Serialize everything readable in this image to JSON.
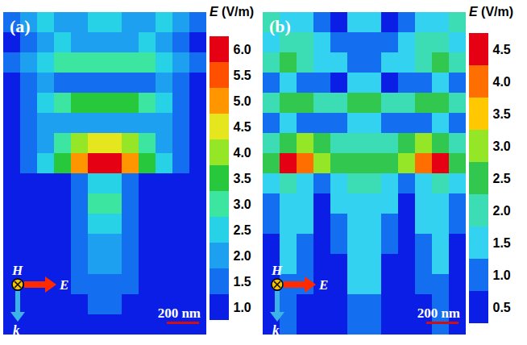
{
  "chart_data": [
    {
      "type": "heatmap",
      "title": "(a)",
      "annotations": [
        "H",
        "E",
        "k",
        "200 nm"
      ],
      "colorbar": {
        "label": "E (V/m)",
        "range": [
          1,
          6
        ],
        "ticks": [
          {
            "value": 1,
            "label": "1.0"
          },
          {
            "value": 1.5,
            "label": "1.5"
          },
          {
            "value": 2,
            "label": "2.0"
          },
          {
            "value": 2.5,
            "label": "2.5"
          },
          {
            "value": 3,
            "label": "3.0"
          },
          {
            "value": 3.5,
            "label": "3.5"
          },
          {
            "value": 4,
            "label": "4.0"
          },
          {
            "value": 4.5,
            "label": "4.5"
          },
          {
            "value": 5,
            "label": "5.0"
          },
          {
            "value": 5.5,
            "label": "5.5"
          },
          {
            "value": 6,
            "label": "6.0"
          }
        ]
      },
      "colors": [
        "#0a1ee6",
        "#146ef0",
        "#1ea0f0",
        "#28d2e6",
        "#3ce6a0",
        "#28c83c",
        "#96e628",
        "#e6e61e",
        "#ff9600",
        "#ff5000",
        "#e60014"
      ],
      "cells": [
        [
          1.5,
          2,
          2.5,
          2,
          2,
          2.5,
          2.5,
          2,
          2,
          2.5,
          2,
          1.5
        ],
        [
          1,
          1.5,
          2,
          2.5,
          2,
          2,
          2,
          2,
          2.5,
          2,
          1.5,
          1
        ],
        [
          1.5,
          2,
          2.5,
          3,
          3,
          3,
          3,
          3,
          3,
          2.5,
          2,
          1.5
        ],
        [
          1,
          1.5,
          2,
          1.5,
          1.5,
          1.5,
          1.5,
          1.5,
          1.5,
          2,
          1.5,
          1
        ],
        [
          1,
          1.5,
          2.5,
          3,
          3.5,
          3.5,
          3.5,
          3.5,
          3,
          2.5,
          1.5,
          1
        ],
        [
          1,
          1.5,
          2,
          2,
          2,
          2,
          2,
          2,
          2,
          2,
          1.5,
          1
        ],
        [
          1,
          1.5,
          2,
          3,
          4,
          4.5,
          4.5,
          4,
          3,
          2,
          1.5,
          1
        ],
        [
          1,
          1.5,
          2.5,
          3.5,
          5,
          6,
          6,
          5,
          3.5,
          2.5,
          1.5,
          1
        ],
        [
          1,
          1,
          1,
          1,
          1.5,
          2.5,
          2.5,
          1.5,
          1,
          1,
          1,
          1
        ],
        [
          1,
          1,
          1,
          1,
          1.5,
          3,
          3,
          1.5,
          1,
          1,
          1,
          1
        ],
        [
          1,
          1,
          1,
          1,
          1.5,
          2.5,
          2.5,
          1.5,
          1,
          1,
          1,
          1
        ],
        [
          1,
          1,
          1,
          1,
          1.5,
          2,
          2,
          1.5,
          1,
          1,
          1,
          1
        ],
        [
          1,
          1,
          1,
          1,
          1.5,
          2,
          2,
          1.5,
          1,
          1,
          1,
          1
        ],
        [
          1,
          1,
          1,
          1,
          1.5,
          1.5,
          1.5,
          1.5,
          1,
          1,
          1,
          1
        ],
        [
          1,
          1,
          1,
          1,
          1,
          1.5,
          1.5,
          1,
          1,
          1,
          1,
          1
        ],
        [
          1,
          1,
          1,
          1,
          1,
          1,
          1,
          1,
          1,
          1,
          1,
          1
        ]
      ]
    },
    {
      "type": "heatmap",
      "title": "(b)",
      "annotations": [
        "H",
        "E",
        "k",
        "200 nm"
      ],
      "colorbar": {
        "label": "E (V/m)",
        "range": [
          0.5,
          4.5
        ],
        "ticks": [
          0.5,
          {
            "value": 1,
            "label": "1.0"
          },
          1.5,
          {
            "value": 2,
            "label": "2.0"
          },
          2.5,
          {
            "value": 3,
            "label": "3.0"
          },
          3.5,
          {
            "value": 4,
            "label": "4.0"
          },
          4.5
        ]
      },
      "colors": [
        "#0a1ee6",
        "#146ef0",
        "#32d2f0",
        "#3cdcb4",
        "#32c850",
        "#96e628",
        "#ffc800",
        "#ff6e00",
        "#e60014"
      ],
      "cells": [
        [
          2,
          1.5,
          1.5,
          1,
          0.5,
          1.5,
          1.5,
          0.5,
          1,
          1.5,
          1.5,
          2
        ],
        [
          1.5,
          2,
          2,
          1.5,
          1,
          1,
          1,
          1,
          1.5,
          2,
          2,
          1.5
        ],
        [
          2,
          2.5,
          2,
          1.5,
          1.5,
          1,
          1,
          1.5,
          1.5,
          2,
          2.5,
          2
        ],
        [
          1,
          1.5,
          1,
          1,
          0.5,
          1.5,
          1.5,
          0.5,
          1,
          1,
          1.5,
          1
        ],
        [
          2,
          2.5,
          2.5,
          2,
          2,
          2.5,
          2.5,
          2,
          2,
          2.5,
          2.5,
          2
        ],
        [
          1,
          1.5,
          1,
          1,
          1,
          1.5,
          1.5,
          1,
          1,
          1,
          1.5,
          1
        ],
        [
          2,
          2.5,
          3,
          2.5,
          2,
          2,
          2,
          2,
          2.5,
          3,
          2.5,
          2
        ],
        [
          2.5,
          4.5,
          4,
          3,
          2.5,
          2.5,
          2.5,
          2.5,
          3,
          4,
          4.5,
          2.5
        ],
        [
          1.5,
          2,
          1.5,
          1,
          1.5,
          2,
          2,
          1.5,
          1,
          1.5,
          2,
          1.5
        ],
        [
          1,
          1.5,
          1.5,
          0.5,
          1.5,
          1.5,
          1.5,
          1.5,
          0.5,
          1.5,
          1.5,
          1
        ],
        [
          1,
          1.5,
          1.5,
          0.5,
          1,
          1.5,
          1.5,
          1,
          0.5,
          1.5,
          1.5,
          1
        ],
        [
          0.5,
          1.5,
          1,
          0.5,
          1,
          1.5,
          1.5,
          1,
          0.5,
          1,
          1.5,
          0.5
        ],
        [
          0.5,
          1.5,
          1,
          0.5,
          0.5,
          1.5,
          1.5,
          0.5,
          0.5,
          1,
          1.5,
          0.5
        ],
        [
          0.5,
          1,
          1,
          0.5,
          0.5,
          1.5,
          1.5,
          0.5,
          0.5,
          1,
          1,
          0.5
        ],
        [
          0.5,
          1,
          0.5,
          0.5,
          0.5,
          1,
          1,
          0.5,
          0.5,
          0.5,
          1,
          0.5
        ],
        [
          0.5,
          1,
          0.5,
          0.5,
          0.5,
          1,
          1,
          0.5,
          0.5,
          0.5,
          1,
          0.5
        ]
      ]
    }
  ]
}
